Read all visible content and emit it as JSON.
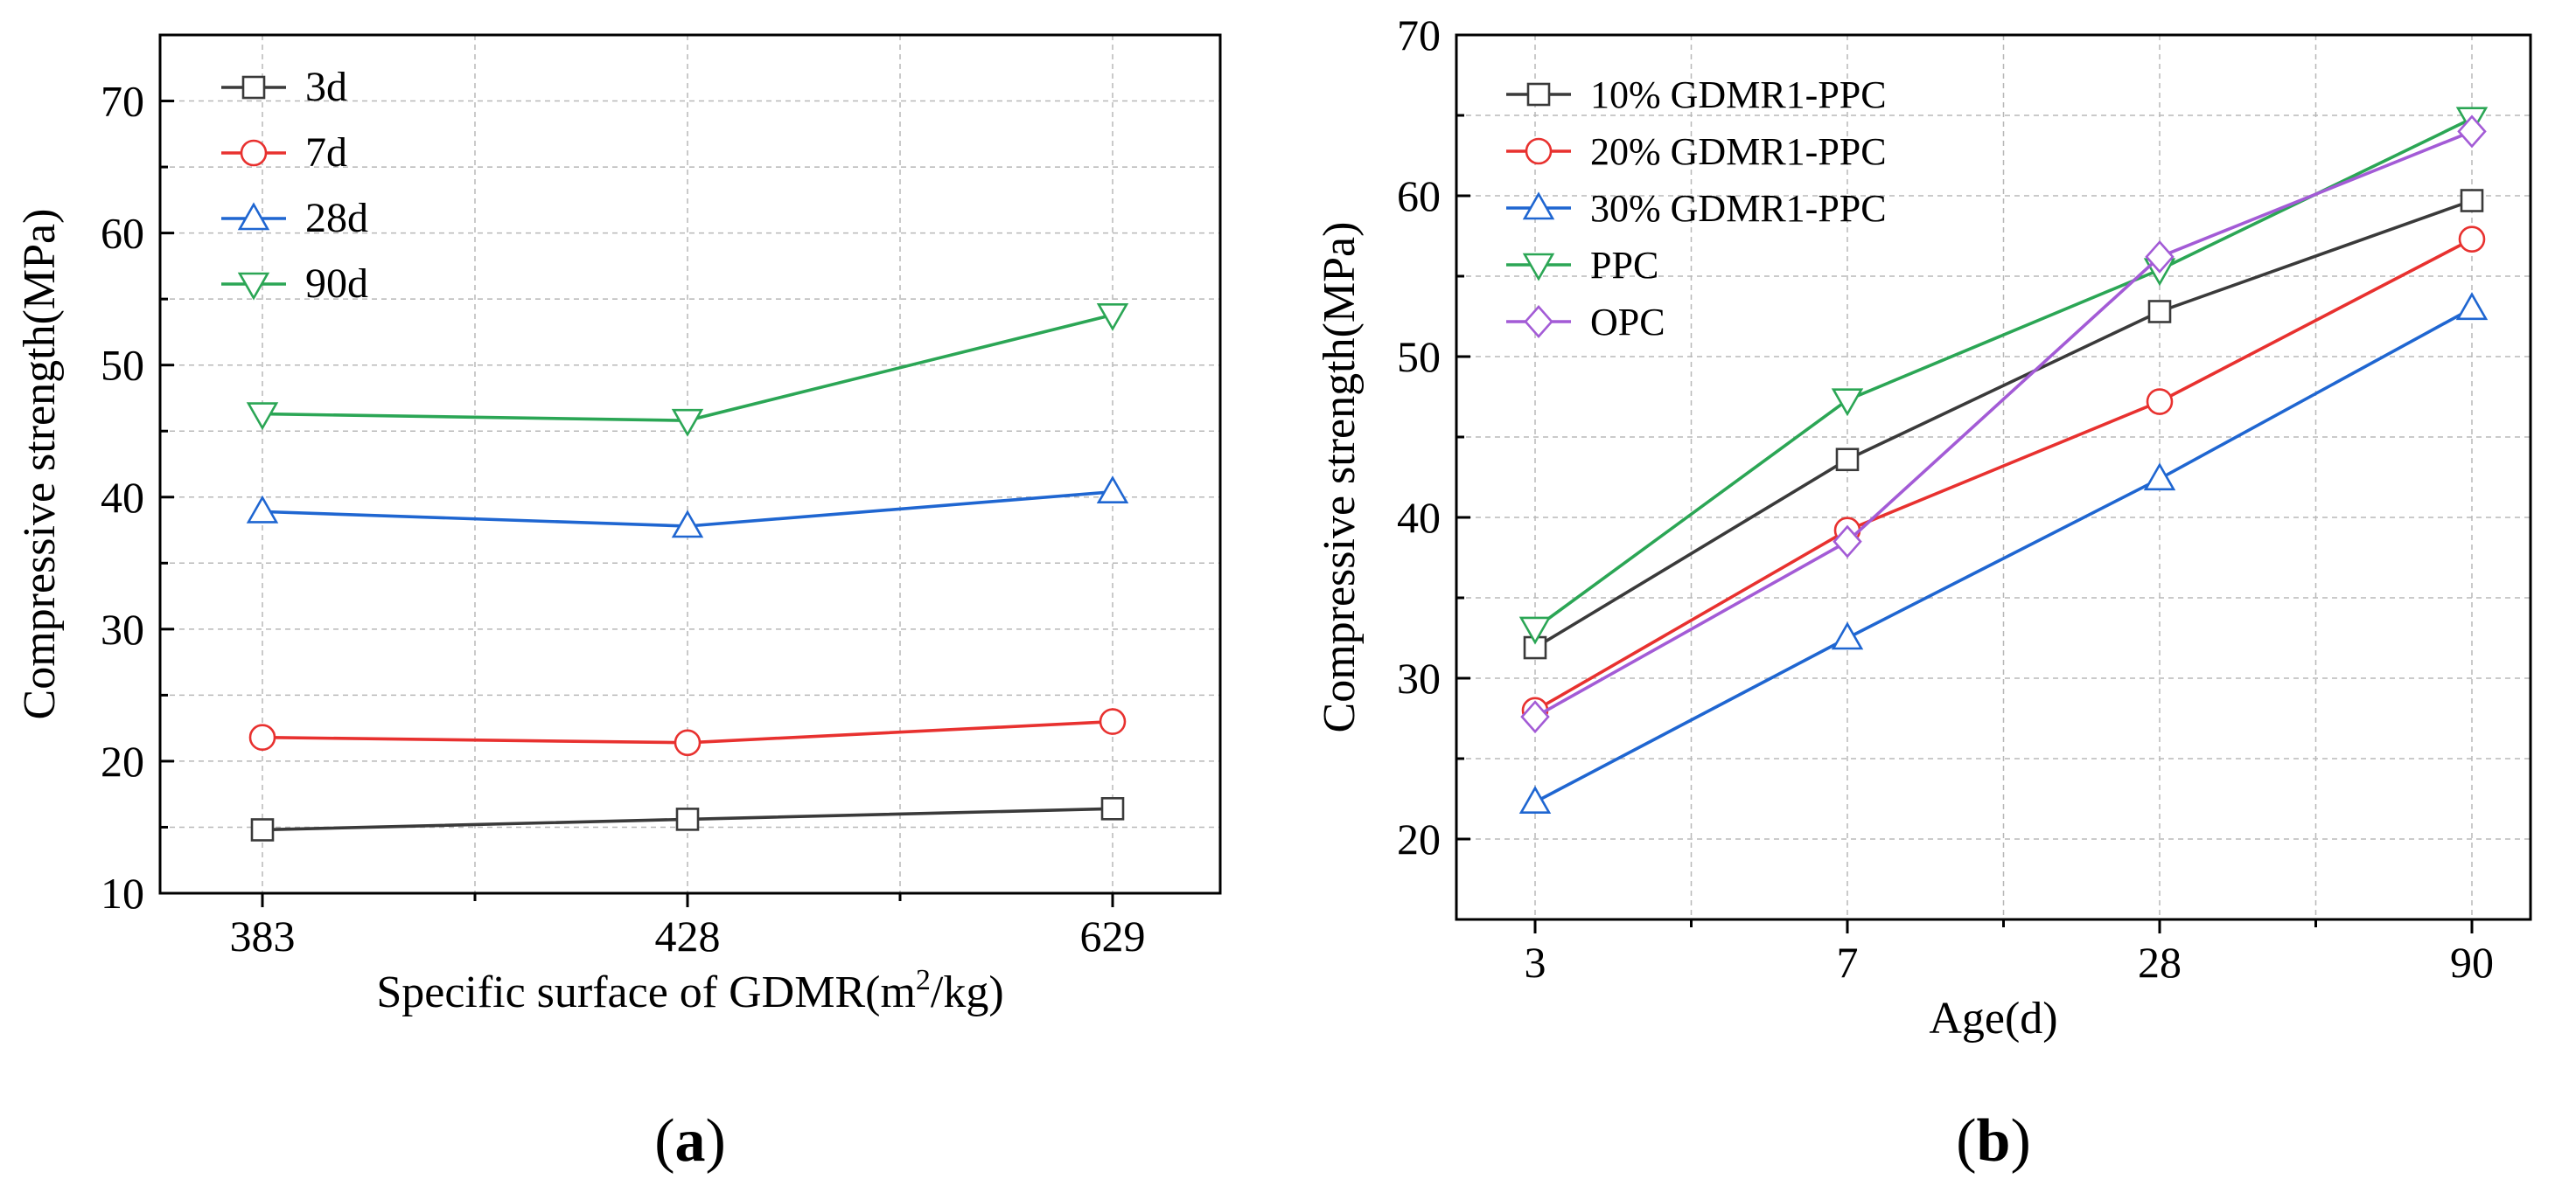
{
  "chart_data": [
    {
      "type": "line",
      "panel_label": "(a)",
      "xlabel_pre": "Specific surface of GDMR(m",
      "xlabel_sup": "2",
      "xlabel_post": "/kg)",
      "ylabel": "Compressive strength(MPa)",
      "categories": [
        "383",
        "428",
        "629"
      ],
      "ylim": [
        10,
        75
      ],
      "yticks": [
        10,
        20,
        30,
        40,
        50,
        60,
        70
      ],
      "grid": true,
      "legend_position": "top-left",
      "series": [
        {
          "name": "3d",
          "marker": "square",
          "color": "#3a3a3a",
          "values": [
            14.8,
            15.6,
            16.4
          ]
        },
        {
          "name": "7d",
          "marker": "circle",
          "color": "#e8312f",
          "values": [
            21.8,
            21.4,
            23.0
          ]
        },
        {
          "name": "28d",
          "marker": "triangle-up",
          "color": "#1f66d1",
          "values": [
            38.9,
            37.8,
            40.4
          ]
        },
        {
          "name": "90d",
          "marker": "triangle-down",
          "color": "#2ba655",
          "values": [
            46.3,
            45.8,
            53.8
          ]
        }
      ]
    },
    {
      "type": "line",
      "panel_label": "(b)",
      "xlabel": "Age(d)",
      "ylabel": "Compressive strength(MPa)",
      "categories": [
        "3",
        "7",
        "28",
        "90"
      ],
      "ylim": [
        15,
        70
      ],
      "yticks": [
        20,
        30,
        40,
        50,
        60,
        70
      ],
      "grid": true,
      "legend_position": "top-left",
      "series": [
        {
          "name": "10% GDMR1-PPC",
          "marker": "square",
          "color": "#3a3a3a",
          "values": [
            31.9,
            43.6,
            52.8,
            59.7
          ]
        },
        {
          "name": "20% GDMR1-PPC",
          "marker": "circle",
          "color": "#e8312f",
          "values": [
            28.0,
            39.2,
            47.2,
            57.3
          ]
        },
        {
          "name": "30% GDMR1-PPC",
          "marker": "triangle-up",
          "color": "#1f66d1",
          "values": [
            22.3,
            32.5,
            42.4,
            53.0
          ]
        },
        {
          "name": "PPC",
          "marker": "triangle-down",
          "color": "#2ba655",
          "values": [
            33.1,
            47.3,
            55.4,
            64.8
          ]
        },
        {
          "name": "OPC",
          "marker": "diamond",
          "color": "#a35bd6",
          "values": [
            27.6,
            38.5,
            56.2,
            64.0
          ]
        }
      ]
    }
  ]
}
